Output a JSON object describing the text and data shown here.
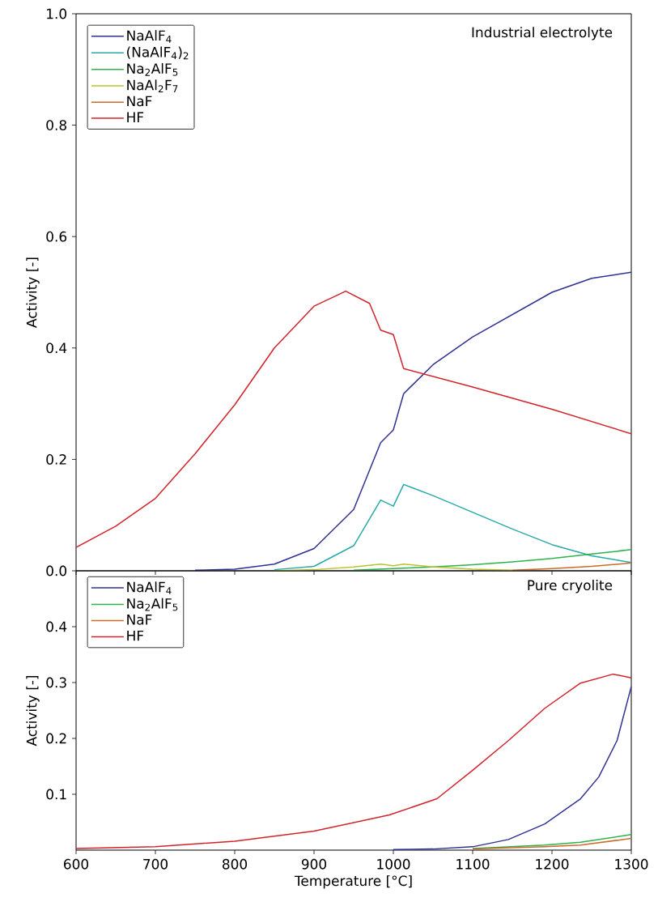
{
  "chart_data": [
    {
      "type": "line",
      "annotations": [
        "Industrial electrolyte"
      ],
      "ylabel": "Activity [-]",
      "xlim": [
        600,
        1300
      ],
      "xticks": [
        600,
        700,
        800,
        900,
        1000,
        1100,
        1200,
        1300
      ],
      "ylim": [
        0,
        1.0
      ],
      "yticks": [
        {
          "value": 0,
          "label": "0.0"
        },
        0.2,
        0.4,
        0.6,
        0.8,
        {
          "value": 1.0,
          "label": "1.0"
        }
      ],
      "tick_labels": "y",
      "legend": "top left",
      "grid": false,
      "marker": "none",
      "series": [
        {
          "name": "NaAlF$_{4}$",
          "color": "#2e3192",
          "x": [
            750,
            800,
            850,
            900,
            950,
            984,
            1000,
            1013,
            1050,
            1100,
            1150,
            1200,
            1250,
            1300
          ],
          "values": [
            0.001,
            0.003,
            0.012,
            0.04,
            0.11,
            0.23,
            0.253,
            0.318,
            0.37,
            0.42,
            0.46,
            0.5,
            0.525,
            0.536
          ]
        },
        {
          "name": "(NaAlF$_{4}$)$_{2}$",
          "color": "#27aaa8",
          "x": [
            850,
            900,
            950,
            984,
            1000,
            1013,
            1050,
            1100,
            1150,
            1200,
            1250,
            1300
          ],
          "values": [
            0.002,
            0.008,
            0.045,
            0.127,
            0.116,
            0.155,
            0.135,
            0.105,
            0.075,
            0.047,
            0.027,
            0.015
          ]
        },
        {
          "name": "Na$_{2}$AlF$_{5}$",
          "color": "#2db34a",
          "x": [
            950,
            1000,
            1050,
            1100,
            1150,
            1200,
            1250,
            1300
          ],
          "values": [
            0.001,
            0.004,
            0.007,
            0.011,
            0.016,
            0.022,
            0.03,
            0.038
          ]
        },
        {
          "name": "NaAl$_{2}$F$_{7}$",
          "color": "#bcc22f",
          "x": [
            850,
            900,
            950,
            984,
            1000,
            1013,
            1050,
            1100,
            1150
          ],
          "values": [
            0,
            0.002,
            0.007,
            0.012,
            0.009,
            0.012,
            0.007,
            0.003,
            0.001
          ]
        },
        {
          "name": "NaF",
          "color": "#cc6b2b",
          "x": [
            1150,
            1200,
            1250,
            1300
          ],
          "values": [
            0.001,
            0.004,
            0.008,
            0.014
          ]
        },
        {
          "name": "HF",
          "color": "#d2232a",
          "x": [
            600,
            650,
            700,
            750,
            800,
            850,
            900,
            940,
            970,
            984,
            1000,
            1013,
            1100,
            1200,
            1300
          ],
          "values": [
            0.042,
            0.08,
            0.13,
            0.21,
            0.298,
            0.4,
            0.475,
            0.502,
            0.48,
            0.432,
            0.424,
            0.363,
            0.33,
            0.29,
            0.246
          ]
        }
      ]
    },
    {
      "type": "line",
      "annotations": [
        "Pure cryolite"
      ],
      "xlabel": "Temperature [°C]",
      "ylabel": "Activity [-]",
      "xlim": [
        600,
        1300
      ],
      "xticks": [
        600,
        700,
        800,
        900,
        1000,
        1100,
        1200,
        1300
      ],
      "ylim": [
        0,
        0.5
      ],
      "yticks": [
        0.1,
        0.2,
        0.3,
        0.4
      ],
      "legend": "top left",
      "grid": false,
      "marker": "none",
      "series": [
        {
          "name": "NaAlF$_{4}$",
          "color": "#2e3192",
          "x": [
            1000,
            1050,
            1100,
            1145,
            1191,
            1236,
            1259,
            1282,
            1300
          ],
          "values": [
            0.001,
            0.002,
            0.006,
            0.019,
            0.047,
            0.092,
            0.131,
            0.196,
            0.293
          ]
        },
        {
          "name": "Na$_{2}$AlF$_{5}$",
          "color": "#2db34a",
          "x": [
            1100,
            1191,
            1236,
            1300
          ],
          "values": [
            0.003,
            0.009,
            0.014,
            0.028
          ]
        },
        {
          "name": "NaF",
          "color": "#cc6b2b",
          "x": [
            1100,
            1191,
            1236,
            1300
          ],
          "values": [
            0.002,
            0.006,
            0.009,
            0.021
          ]
        },
        {
          "name": "HF",
          "color": "#d2232a",
          "x": [
            600,
            700,
            800,
            900,
            995,
            1055,
            1100,
            1145,
            1191,
            1236,
            1277,
            1298,
            1300
          ],
          "values": [
            0.003,
            0.006,
            0.016,
            0.034,
            0.063,
            0.092,
            0.143,
            0.196,
            0.254,
            0.299,
            0.315,
            0.309,
            0.308
          ]
        }
      ]
    }
  ]
}
